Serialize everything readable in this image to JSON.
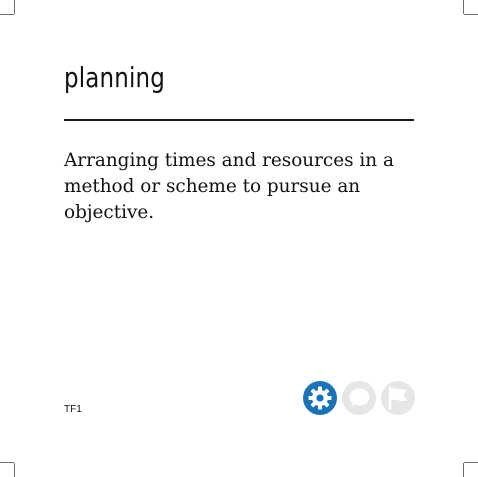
{
  "card": {
    "term": "planning",
    "definition": "Arranging times and resources in a method or scheme to pursue an objective.",
    "code": "TF1"
  },
  "icons": [
    {
      "name": "gear-icon",
      "color": "#1a73b8",
      "state": "active"
    },
    {
      "name": "speech-bubble-icon",
      "color": "#e6e6e6",
      "state": "inactive"
    },
    {
      "name": "flag-icon",
      "color": "#e6e6e6",
      "state": "inactive"
    }
  ],
  "colors": {
    "accent": "#1a73b8",
    "inactive": "#e6e6e6",
    "text": "#111111"
  }
}
